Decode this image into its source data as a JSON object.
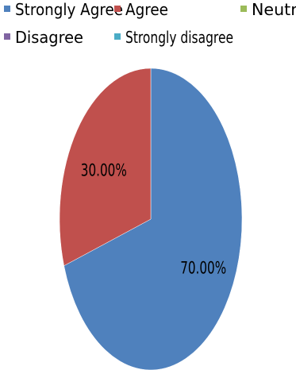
{
  "chart_data": {
    "type": "pie",
    "title": "",
    "legend_position": "top",
    "categories": [
      "Strongly Agree",
      "Agree",
      "Neutral",
      "Disagree",
      "Strongly disagree"
    ],
    "values": [
      70,
      30,
      0,
      0,
      0
    ],
    "data_labels": [
      "70.00%",
      "30.00%",
      "",
      "",
      ""
    ],
    "colors": [
      "#4f81bd",
      "#c0504d",
      "#9bbb59",
      "#8064a2",
      "#4bacc6"
    ]
  }
}
